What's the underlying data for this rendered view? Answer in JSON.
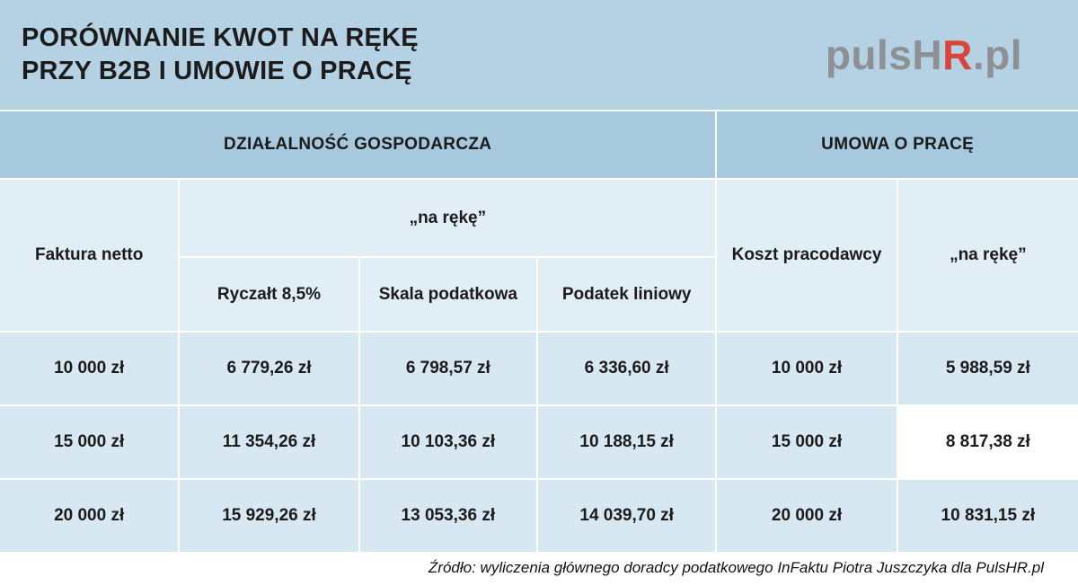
{
  "banner": {
    "title_line1": "PORÓWNANIE KWOT NA RĘKĘ",
    "title_line2": "PRZY B2B I UMOWIE O PRACĘ",
    "logo": {
      "gray_left": "pulsH",
      "red": "R",
      "gray_right": ".pl"
    }
  },
  "sections": {
    "left": "DZIAŁALNOŚĆ GOSPODARCZA",
    "right": "UMOWA O PRACĘ"
  },
  "headers": {
    "faktura": "Faktura netto",
    "na_reke_b2b": "„na rękę”",
    "ryczalt": "Ryczałt 8,5%",
    "skala": "Skala podatkowa",
    "liniowy": "Podatek liniowy",
    "koszt": "Koszt pracodawcy",
    "na_reke_uop": "„na rękę”"
  },
  "table": {
    "rows": [
      [
        "10 000 zł",
        "6 779,26 zł",
        "6 798,57 zł",
        "6 336,60 zł",
        "10 000 zł",
        "5 988,59 zł"
      ],
      [
        "15 000 zł",
        "11 354,26 zł",
        "10 103,36 zł",
        "10 188,15 zł",
        "15 000 zł",
        "8 817,38 zł"
      ],
      [
        "20 000 zł",
        "15 929,26 zł",
        "13 053,36 zł",
        "14 039,70 zł",
        "20 000 zł",
        "10 831,15 zł"
      ]
    ]
  },
  "footer": {
    "source": "Źródło: wyliczenia głównego doradcy podatkowego InFaktu Piotra Juszczyka dla PulsHR.pl"
  },
  "colors": {
    "banner_blue": "#b4d2e3",
    "band_blue": "#a6c9dd",
    "header_light_blue": "#e2eef6",
    "row_blue": "#d8e8f3",
    "logo_gray": "#8d9094",
    "logo_red": "#d9453c",
    "text_dark": "#1b1b1b"
  },
  "chart_data": {
    "type": "table",
    "title": "PORÓWNANIE KWOT NA RĘKĘ PRZY B2B I UMOWIE O PRACĘ",
    "column_groups": [
      "DZIAŁALNOŚĆ GOSPODARCZA",
      "UMOWA O PRACĘ"
    ],
    "columns": [
      "Faktura netto",
      "Ryczałt 8,5% („na rękę”)",
      "Skala podatkowa („na rękę”)",
      "Podatek liniowy („na rękę”)",
      "Koszt pracodawcy",
      "„na rękę” (umowa o pracę)"
    ],
    "rows": [
      [
        "10 000 zł",
        "6 779,26 zł",
        "6 798,57 zł",
        "6 336,60 zł",
        "10 000 zł",
        "5 988,59 zł"
      ],
      [
        "15 000 zł",
        "11 354,26 zł",
        "10 103,36 zł",
        "10 188,15 zł",
        "15 000 zł",
        "8 817,38 zł"
      ],
      [
        "20 000 zł",
        "15 929,26 zł",
        "13 053,36 zł",
        "14 039,70 zł",
        "20 000 zł",
        "10 831,15 zł"
      ]
    ],
    "source": "Źródło: wyliczenia głównego doradcy podatkowego InFaktu Piotra Juszczyka dla PulsHR.pl",
    "legend_position": "none",
    "grid": true
  }
}
